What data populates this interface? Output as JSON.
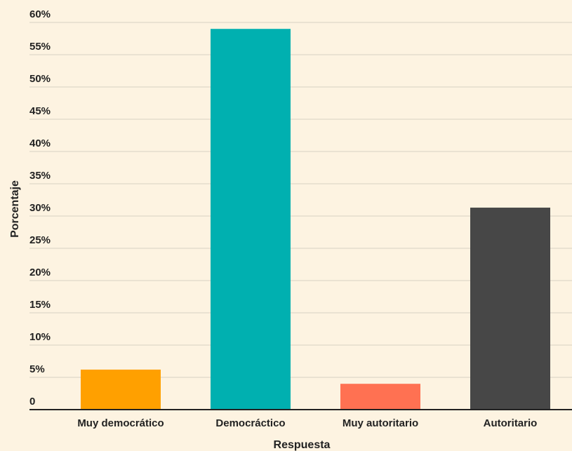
{
  "chart_data": {
    "type": "bar",
    "categories": [
      "Muy democrático",
      "Democráctico",
      "Muy autoritario",
      "Autoritario"
    ],
    "values": [
      6.2,
      59,
      4,
      31.3
    ],
    "colors": [
      "#ffa000",
      "#00b0b0",
      "#ff7152",
      "#474747"
    ],
    "xlabel": "Respuesta",
    "ylabel": "Porcentaje",
    "ylim": [
      0,
      60
    ],
    "yticks": [
      {
        "value": 0,
        "label": "0"
      },
      {
        "value": 5,
        "label": "5%"
      },
      {
        "value": 10,
        "label": "10%"
      },
      {
        "value": 15,
        "label": "15%"
      },
      {
        "value": 20,
        "label": "20%"
      },
      {
        "value": 25,
        "label": "25%"
      },
      {
        "value": 30,
        "label": "30%"
      },
      {
        "value": 35,
        "label": "35%"
      },
      {
        "value": 40,
        "label": "40%"
      },
      {
        "value": 45,
        "label": "45%"
      },
      {
        "value": 50,
        "label": "50%"
      },
      {
        "value": 55,
        "label": "55%"
      },
      {
        "value": 60,
        "label": "60%"
      }
    ],
    "grid": true,
    "background": "#fdf3e1"
  }
}
